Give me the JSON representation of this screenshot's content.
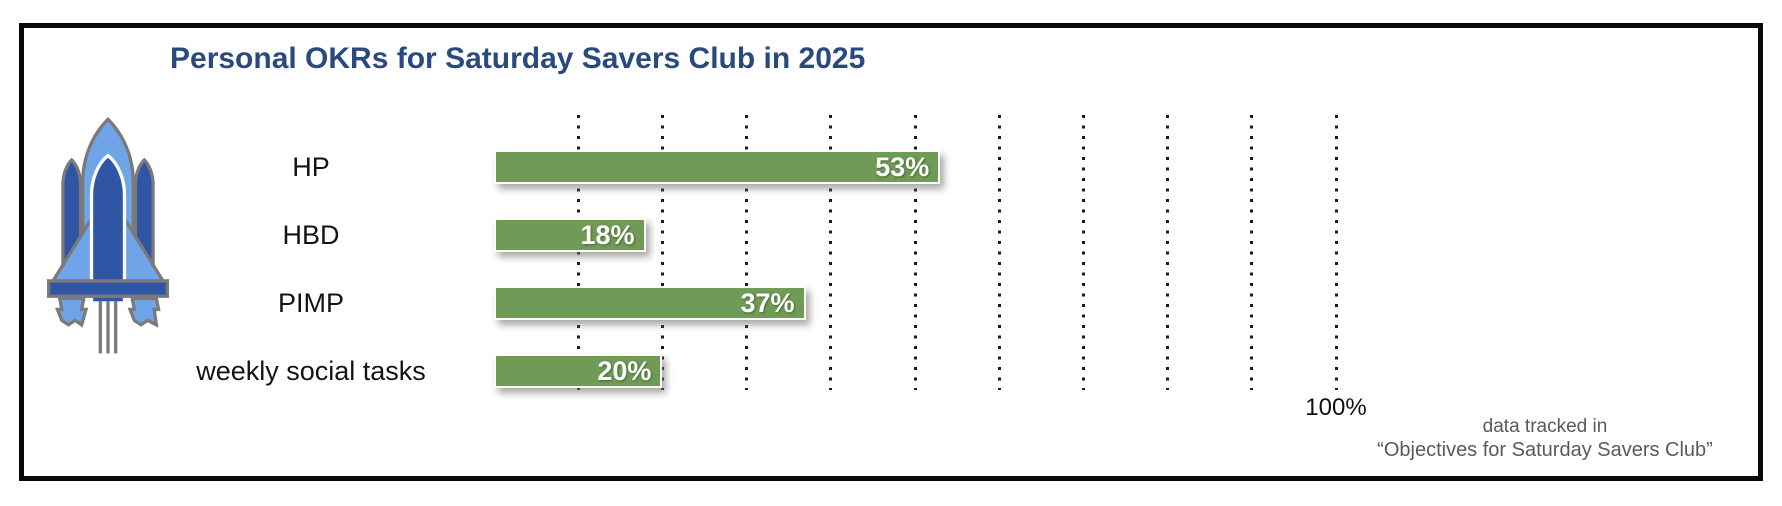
{
  "slide": {
    "axis_max_label": "100%",
    "footnote_line1": "data tracked in",
    "footnote_line2": "“Objectives for Saturday Savers Club”"
  },
  "chart_data": {
    "type": "bar",
    "orientation": "horizontal",
    "title": "Personal OKRs for Saturday Savers Club in 2025",
    "categories": [
      "HP",
      "HBD",
      "PIMP",
      "weekly social tasks"
    ],
    "values": [
      53,
      18,
      37,
      20
    ],
    "data_labels": [
      "53%",
      "18%",
      "37%",
      "20%"
    ],
    "xlim": [
      0,
      100
    ],
    "gridline_percents": [
      10,
      20,
      30,
      40,
      50,
      60,
      70,
      80,
      90,
      100
    ],
    "grid_style": "dotted-vertical",
    "legend": "none",
    "visible_tick_labels": [
      "100%"
    ],
    "bar_color": "#6f9b57",
    "annotation": "data tracked in “Objectives for Saturday Savers Club”"
  },
  "icons": {
    "rocket": "rocket-icon"
  },
  "colors": {
    "title_navy": "#2a4a7d",
    "bar_green": "#6f9b57",
    "frame_border_black": "#0a0a0a",
    "footnote_gray": "#5a5a5a",
    "gridline_black": "#1c1c1c",
    "rocket_light_blue": "#6fa4e8",
    "rocket_dark_blue": "#2f55a4",
    "rocket_gray": "#7a7a7a"
  }
}
